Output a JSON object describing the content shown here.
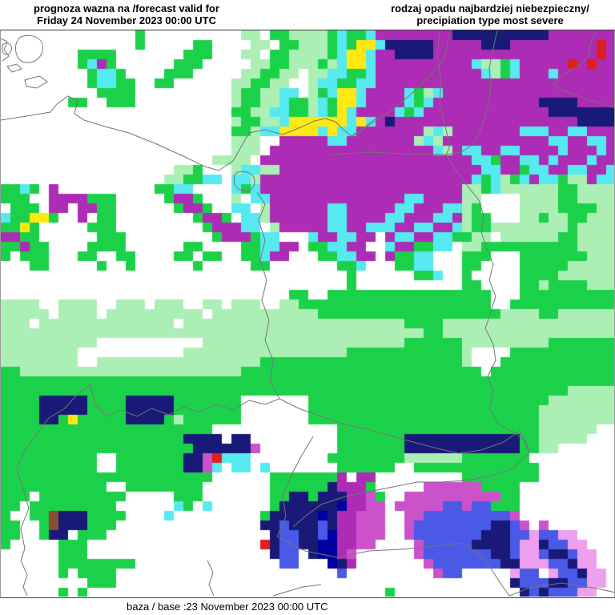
{
  "header": {
    "left": {
      "line1": "prognoza wazna na /forecast valid for",
      "line2": "Friday 24 November 2023 00:00 UTC"
    },
    "right": {
      "line1": "rodzaj opadu najbardziej niebezpieczny/",
      "line2": "precipiation type most severe"
    }
  },
  "footer": {
    "base_text": "baza / base :23 November 2023 00:00 UTC"
  },
  "map": {
    "frame_color": "#3a3a3a",
    "border_color": "#757575",
    "cell_size": 12,
    "palette": {
      "g": "#1cd14a",
      "p": "#abefb5",
      "m": "#ad2cb5",
      "c": "#56e9f0",
      "y": "#ffe814",
      "n": "#191978",
      "d": "#0000a0",
      "b": "#4a5ae6",
      "o": "#cb52cb",
      "k": "#eda0ed",
      "r": "#dc1f1f",
      "w": "#8a4d35"
    },
    "grid": [
      [
        "........",
        "......g.",
        "........",
        ".pp.ggpp",
        "ppgcggcm",
        "mmmmmmmn",
        "nnnnnnnn",
        "nmmmmmmm"
      ],
      [
        "........",
        "......g.",
        "....gg..",
        "..pp.ggp",
        "ppgcgyyc",
        "nnnnnmmm",
        "mmnnnmmm",
        "mmmmmmrm"
      ],
      [
        "........",
        "gggg....",
        "...ggg..",
        ".pp.ggpp",
        "ppgcyycm",
        "mnnnnmmm",
        "mmmmmmmm",
        "mmmmmmrm"
      ],
      [
        "........",
        "gcmg....",
        "..ggg...",
        "..ppggpp",
        "pgpcyycm",
        "mmmmmmmm",
        "mcppgcmm",
        "mmmrmrmm"
      ],
      [
        "........",
        ".gccg...",
        ".ggg....",
        ".ppggpp.",
        "ppccggcm",
        "mmmmmmmm",
        "mmcpgcmm",
        "mcmmmmmm"
      ],
      [
        "........",
        ".gccgg..",
        "gg......",
        "ppggpp..",
        "pccggccm",
        "mmmmmmmm",
        "mmmmmmmm",
        "mmmmmmmm"
      ],
      [
        "........",
        "..gggg..",
        "........",
        "pggppcc.",
        "pgcyycmm",
        "mmcgpcmm",
        "mmmmmmmm",
        "mmmmmmmm"
      ],
      [
        ".......g",
        "g..ggg..",
        "........",
        "pggppcgg",
        "pcgyycmm",
        "mmcgcmmm",
        "mmmmmmmm",
        "nnnnmmmm"
      ],
      [
        "........",
        "........",
        "........",
        "ggppccgg",
        "pcgycmmm",
        "mcgcmmmm",
        "mmmmmmmm",
        "mnnnnnnn"
      ],
      [
        "........",
        "........",
        "........",
        "pggppcyy",
        "yyyycycm",
        "nmmmmmmm",
        "mmmmmmmm",
        "mmmmnnnn"
      ],
      [
        "........",
        "........",
        "........",
        "ggpccyyy",
        "ycyccmmm",
        "mmmmpcpm",
        "mmmmmmcc",
        "cmmccmmm"
      ],
      [
        "........",
        "........",
        "........",
        "ppp..mmm",
        "mmccmmmm",
        "mmmpcpmm",
        "mmmmmmmm",
        "mccmmccm"
      ],
      [
        "........",
        "........",
        "........",
        "ppp.mmmm",
        "mmmmmmmm",
        "mmmmmcpm",
        "ccmmccmm",
        "mmcmmmcm"
      ],
      [
        "........",
        "........",
        "......pp",
        "pp.mmmmm",
        "mmmmmmmm",
        "mmmmmmmm",
        "mccgmmcc",
        "mcmmmcmm"
      ],
      [
        "........",
        "........",
        "..ppg...",
        "pccppmmm",
        "mmmmmmmm",
        "mmmmmmmm",
        "mmccmmgc",
        "cmmccmmc"
      ],
      [
        "........",
        "........",
        ".ppggcc.",
        "ccpmmmmm",
        "mmmmmmmm",
        "mmmmmmmm",
        "mcgcpgcm",
        "ccgppmcc"
      ],
      [
        "ggcg.m..",
        "........",
        "ggcc....",
        "cgcmmmmm",
        "mmmmmmmm",
        "mmmmmmmm",
        "ppgcpppp",
        "ppggpppp"
      ],
      [
        "ggg..mmm",
        "mggg....",
        ".gmmg...",
        "p.ccmmmm",
        "mmmmmmmm",
        "mmccmmmm",
        "pp....pp",
        "ppggpppp"
      ],
      [
        ".ggg.mm.",
        "mmgg....",
        "..gmmg..",
        "cc.pmmmm",
        "mmccmmmm",
        "mccmmmcc",
        "pg....pp",
        "ppggggpp"
      ],
      [
        "cggyyg..",
        "m.gg....",
        "....gmmg",
        ".ccpmmmm",
        "mmccmmmm",
        "ccmmmccm",
        "pgg...pp",
        "gppggppp"
      ],
      [
        "ggyg....",
        ".ggg....",
        ".....gmm",
        "mcc.pmmm",
        "mmccmmcc",
        "cmmccmmc",
        "pggppppp",
        "pppgpppp"
      ],
      [
        "mmgg....",
        "..ggg...",
        "......gm",
        "mmgcc...",
        "cmmccmm.",
        "mccmmccg",
        "gpp.pppp",
        "ppggpppp"
      ],
      [
        "ggmgg...",
        ".gggg...",
        "...gg...",
        ".ggccmm.",
        "ggccmm..",
        "cmmggcc.",
        "ppgggggg",
        "ggggpppp"
      ],
      [
        "g.ggg...",
        "gg..gg..",
        "..gg.gg.",
        ".ggcmm..",
        ".ggccmm.",
        "mggcc...",
        "ggg...gg",
        "gggggppp"
      ],
      [
        "...gg...",
        "..g..g..",
        "....g...",
        "..gg....",
        "...ggc..",
        ".ggcc...",
        "gg....gg",
        "gggppppp"
      ],
      [
        "........",
        "........",
        "........",
        "........",
        "....g...",
        "...ggc..",
        "g.....gg",
        "ggpppppp"
      ],
      [
        "........",
        "........",
        "........",
        "........",
        "....g...",
        "........",
        "gg....gg",
        "pggggppp"
      ],
      [
        "........",
        "........",
        "........",
        "......gg",
        "..gggggg",
        "gggggggg",
        "ggg...gg",
        "gggggggg"
      ],
      [
        "pppp..pp",
        "pp..ppp.",
        "ppp..pp.",
        "ppp..ppg",
        "gggggggg",
        "gggggggg",
        "ggg..ggg",
        "gggggggg"
      ],
      [
        "ppppp.pp",
        "pp.ppppp",
        "ppppp.pp",
        "pppppppp",
        "pggggggg",
        "gggggggg",
        "ggggpppp",
        "ggpppppp"
      ],
      [
        "ppp.pppp",
        "pppppppp",
        "pp.ppppp",
        "pppppppp",
        "pppppppp",
        "ppggggpp",
        "pppppppp",
        "pppppppp"
      ],
      [
        "pppppppp",
        "pppppppp",
        "pppppppp",
        "pppppppp",
        "pppppppp",
        "ppppggpp",
        "pppppppp",
        "pppppppp"
      ],
      [
        "pppppppp",
        "pp......",
        ".....ppp",
        "pppppppp",
        "pppppppp",
        "ppgggggg",
        "pppppppp",
        "pggggggg"
      ],
      [
        "pppppppp",
        "........",
        "...ppppp",
        "pppppppp",
        "ppppgggg",
        "gggggggg",
        "p....ggg",
        "gggggggg"
      ],
      [
        "pppppppp",
        "..pppppp",
        "pppppppp",
        "pppggggg",
        "gggggggg",
        "gggggggg",
        "p...gggg",
        "gggggggg"
      ],
      [
        "ggpppppp",
        "pppppppp",
        "pppppppp",
        "pggggggg",
        "gggggggg",
        "gggggggg",
        "gg.ggggg",
        "gggggggg"
      ],
      [
        "gggggggg",
        "gggggggg",
        "gggggggg",
        "gggggggg",
        "gggggggg",
        "gggggggg",
        "gggggggg",
        "gggggggg"
      ],
      [
        "gggggggg",
        "gggggggg",
        "gggggggg",
        "gggggggg",
        "gggggggg",
        "gggggggg",
        "gggggggg",
        "gggppppp"
      ],
      [
        "ggggnnnn",
        "nggggnnn",
        "nngggggg",
        "g.......",
        "gggggggg",
        "gggggggg",
        "gggggggg",
        "gppppppp"
      ],
      [
        "ggggnnnn",
        "nggggnnn",
        "nngggggg",
        "g.......",
        "gggggggg",
        "gggggggg",
        "gggggggg",
        "pppppppp"
      ],
      [
        "ggggnngy",
        "gggggnnn",
        "ngpggggg",
        "g.......",
        "gggggggg",
        "gggggggg",
        "gggggggg",
        "pppppppp"
      ],
      [
        "gggggggg",
        "gggggggg",
        "gggggg..",
        "........",
        "...ggggg",
        "gggggggg",
        "gggggggg",
        "pppppp.."
      ],
      [
        "gggggggg",
        "gggggggg",
        "gggnnnn.",
        "nn......",
        "...ggggg",
        "ggnnnnnn",
        "nnnnnngg",
        "ppppp..."
      ],
      [
        "gggggggg",
        "gggggggg",
        "ggggnnnn",
        "nno.....",
        "...ggggg",
        "ggnnnnnn",
        "nnnnnngg",
        "pp......"
      ],
      [
        "gggggggg",
        "gg..gggg",
        "gggnnorc",
        "cc......",
        "..gggggg",
        "ggpppppp",
        "ggggggg.",
        "........"
      ],
      [
        "gggggggg",
        "gg..gggg",
        "gggnnoc.",
        "cc.c....",
        "...ggggg",
        "g..ggggg",
        "gggggggg",
        "........"
      ],
      [
        "gggggggg",
        "gggggggg",
        "gggggg..",
        "....gggg",
        "gggm.mm.",
        "........",
        "gggggggg",
        "........"
      ],
      [
        "gggggggg",
        "ggg..ggg",
        "ggggg...",
        "....gggg",
        "ggnmmmg.",
        "....oooo",
        "oogggg..",
        "........"
      ],
      [
        "ggg.gggg",
        "ggggg...",
        "..ggg...",
        "....ggnn",
        "gnnnmmog",
        "..oooooo",
        "oooogg..",
        "........"
      ],
      [
        "gg.ggggg",
        "gggg....",
        "..cg.c..",
        "....gnnn",
        "nnndmmoo",
        ".ooooobb",
        "obbggg..",
        "........"
      ],
      [
        "g..ggwnn",
        "ngggg...",
        ".c......",
        "...gnnnn",
        "ndnmmooo",
        "..oobbbb",
        "bbbbbo..",
        "........"
      ],
      [
        "gg..gwnn",
        "nggg....",
        "........",
        "...nnbnn",
        "nbnmmooo",
        "..obbbbb",
        "bbbnnbo.",
        "o......."
      ],
      [
        "gg..gnn.",
        "ggg.....",
        "........",
        "....nbbn",
        "nbdmmooo",
        "..obbbbb",
        "bbnnnbbk",
        "bbkk...."
      ],
      [
        "g.....gg",
        "g.......",
        "........",
        "...rnbbn",
        "nddmmoo.",
        "...obbbb",
        "bnnnnbkk",
        "nbbkk..."
      ],
      [
        "......gg",
        "g.......",
        "........",
        "....nbb.",
        "nddmo...",
        "...obbbb",
        "bbbnnbkk",
        "bnnbkk.."
      ],
      [
        "......gg",
        "gggggg..",
        "........",
        ".....bb.",
        "..dnm...",
        "....obbb",
        "bbbbnnkk",
        "kbbnkk.."
      ],
      [
        "......g.",
        "gggg....",
        "........",
        "........",
        "...b....",
        ".....obb",
        ".....kbb",
        ".kbbnkk."
      ],
      [
        "........",
        ".ggg....",
        "........",
        "........",
        "........",
        "........",
        ".....nbb",
        "bnnbbkk."
      ],
      [
        "......g.",
        "g.......",
        "........",
        "........",
        "........",
        "g.......",
        "......nb",
        "nbbbkk.."
      ]
    ],
    "borders": [
      "M25,8 C40,3 55,10 52,25 C50,37 37,43 27,39 C17,34 15,15 25,8 Z",
      "M2,18 C8,13 15,17 13,25 C11,33 2,31 2,25 Z",
      "M8,45 L20,42 L26,48 L14,52 Z",
      "M30,62 L48,57 L58,64 L45,72 L32,70 Z",
      "M0,10 L8,14 L4,24 L10,32 L2,38",
      "M0,112 L38,106 L62,102 L70,92 L84,82 L96,88 L92,104 L104,112 L130,120 L160,128 L195,142 L230,158 L255,170 L272,175 L290,163 L310,128 L330,124 L352,130 L372,122 L392,113 L405,110 L418,114 L428,124 L438,132 L448,128 L458,118 L466,112 L476,108 L488,100 L500,90 L514,78 L528,64 L542,50 L552,38 L557,22 L560,2",
      "M296,177 C310,174 320,182 316,194 C312,204 296,202 292,192 C290,184 292,179 296,177 Z",
      "M440,130 L460,118 L474,110",
      "M413,155 L460,152 L505,154 L556,155",
      "M548,2 L545,32 L550,62 L548,92 L553,112 L558,132 L560,147 L556,155",
      "M620,0 L615,22 L610,47 L612,72 L608,97 L600,122 L590,142 L575,152 L556,155",
      "M745,0 C730,17 740,32 725,42 C710,52 695,57 690,67 C700,77 720,80 735,87 L768,97",
      "M556,155 L570,177 L585,197 L597,212 L603,232 L600,252 L607,272 L615,292 L610,312 L618,332 L612,352 L605,372 L615,392 L618,412 L608,432 L615,452 L610,472 L622,492 L640,502 L655,512 L660,527",
      "M348,460 L372,472 L400,482 L430,492 L458,498 L486,506 L515,514 L545,522 L572,528 L600,524 L628,514 L648,500 L660,527",
      "M320,202 L330,217 L322,237 L330,262 L324,287 L332,312 L326,337 L335,362 L330,387 L340,412 L336,437 L348,460",
      "M348,460 L330,467 L310,462 L290,474 L268,467 L248,477 L228,470 L210,480 L188,472 L170,482 L150,474 L132,482 L118,468 L112,442",
      "M112,442 L95,455 L80,472 L60,484 L45,504 L30,524 L20,548 L28,572 L35,597 L25,622 L30,647 L25,662 L33,680 L28,695 L33,706",
      "M258,662 L265,677 L260,692 L266,706",
      "M390,507 L375,532 L362,557 L352,582 L356,607 L345,632",
      "M345,632 L380,650 L420,658 L460,650 L500,648 L540,644 L575,640 L595,652 L612,672 L625,692 L635,706",
      "M660,527 L640,547 L610,557 L580,562 L550,564 L520,564 L490,570 L460,576 L430,582 L400,592 L380,607 L365,620",
      "M340,706 L360,700 L377,695 L400,692",
      "M635,706 L660,696 L700,690 L740,696 L768,702"
    ]
  }
}
